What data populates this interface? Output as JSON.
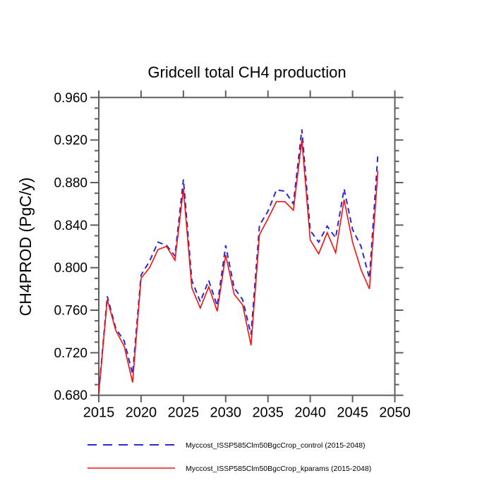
{
  "chart_data": {
    "type": "line",
    "title": "Gridcell total CH4 production",
    "xlabel": "",
    "ylabel": "CH4PROD  (PgC/y)",
    "xlim": [
      2015,
      2050
    ],
    "ylim": [
      0.68,
      0.96
    ],
    "grid": "off",
    "legend_position": "bottom",
    "x_ticks": [
      {
        "label": "2015",
        "value": 2015
      },
      {
        "label": "2020",
        "value": 2020
      },
      {
        "label": "2025",
        "value": 2025
      },
      {
        "label": "2030",
        "value": 2030
      },
      {
        "label": "2035",
        "value": 2035
      },
      {
        "label": "2040",
        "value": 2040
      },
      {
        "label": "2045",
        "value": 2045
      },
      {
        "label": "2050",
        "value": 2050
      }
    ],
    "y_ticks": [
      {
        "label": "0.960",
        "value": 0.96
      },
      {
        "label": "0.920",
        "value": 0.92
      },
      {
        "label": "0.880",
        "value": 0.88
      },
      {
        "label": "0.840",
        "value": 0.84
      },
      {
        "label": "0.800",
        "value": 0.8
      },
      {
        "label": "0.760",
        "value": 0.76
      },
      {
        "label": "0.720",
        "value": 0.72
      },
      {
        "label": "0.680",
        "value": 0.68
      }
    ],
    "y_minor_step": 0.01,
    "x": [
      2015,
      2016,
      2017,
      2018,
      2019,
      2020,
      2021,
      2022,
      2023,
      2024,
      2025,
      2026,
      2027,
      2028,
      2029,
      2030,
      2031,
      2032,
      2033,
      2034,
      2035,
      2036,
      2037,
      2038,
      2039,
      2040,
      2041,
      2042,
      2043,
      2044,
      2045,
      2046,
      2047,
      2048
    ],
    "series": [
      {
        "name": "Myccost_ISSP585Clm50BgcCrop_control (2015-2048)",
        "color": "#2a2ad0",
        "style": "dashed",
        "values": [
          0.683,
          0.773,
          0.743,
          0.731,
          0.7,
          0.793,
          0.806,
          0.824,
          0.821,
          0.811,
          0.883,
          0.788,
          0.768,
          0.788,
          0.764,
          0.821,
          0.781,
          0.77,
          0.737,
          0.84,
          0.853,
          0.873,
          0.872,
          0.86,
          0.93,
          0.835,
          0.824,
          0.839,
          0.828,
          0.874,
          0.836,
          0.82,
          0.79,
          0.907
        ]
      },
      {
        "name": "Myccost_ISSP585Clm50BgcCrop_kparams (2015-2048)",
        "color": "#f51111",
        "style": "solid",
        "values": [
          0.682,
          0.77,
          0.741,
          0.726,
          0.692,
          0.79,
          0.8,
          0.817,
          0.82,
          0.807,
          0.874,
          0.781,
          0.762,
          0.782,
          0.759,
          0.812,
          0.775,
          0.765,
          0.727,
          0.831,
          0.846,
          0.862,
          0.862,
          0.854,
          0.92,
          0.826,
          0.813,
          0.833,
          0.814,
          0.864,
          0.824,
          0.798,
          0.78,
          0.891
        ]
      }
    ],
    "axis_color": "#5f5f5f"
  }
}
